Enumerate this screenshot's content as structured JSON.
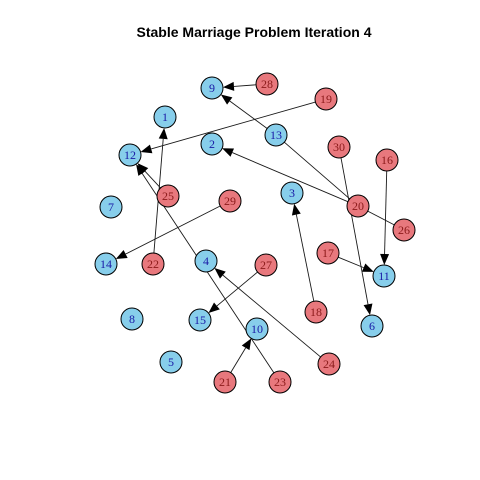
{
  "title": "Stable Marriage Problem Iteration 4",
  "colors": {
    "blue_group": "#87CEEB",
    "red_group": "#E8787D",
    "blue_label": "#1a1aa6",
    "red_label": "#8b1a1a",
    "edge": "#1a1a1a"
  },
  "nodes": [
    {
      "id": "1",
      "group": "blue"
    },
    {
      "id": "2",
      "group": "blue"
    },
    {
      "id": "3",
      "group": "blue"
    },
    {
      "id": "4",
      "group": "blue"
    },
    {
      "id": "5",
      "group": "blue"
    },
    {
      "id": "6",
      "group": "blue"
    },
    {
      "id": "7",
      "group": "blue"
    },
    {
      "id": "8",
      "group": "blue"
    },
    {
      "id": "9",
      "group": "blue"
    },
    {
      "id": "10",
      "group": "blue"
    },
    {
      "id": "11",
      "group": "blue"
    },
    {
      "id": "12",
      "group": "blue"
    },
    {
      "id": "13",
      "group": "blue"
    },
    {
      "id": "14",
      "group": "blue"
    },
    {
      "id": "15",
      "group": "blue"
    },
    {
      "id": "16",
      "group": "red"
    },
    {
      "id": "17",
      "group": "red"
    },
    {
      "id": "18",
      "group": "red"
    },
    {
      "id": "19",
      "group": "red"
    },
    {
      "id": "20",
      "group": "red"
    },
    {
      "id": "21",
      "group": "red"
    },
    {
      "id": "22",
      "group": "red"
    },
    {
      "id": "23",
      "group": "red"
    },
    {
      "id": "24",
      "group": "red"
    },
    {
      "id": "25",
      "group": "red"
    },
    {
      "id": "26",
      "group": "red"
    },
    {
      "id": "27",
      "group": "red"
    },
    {
      "id": "28",
      "group": "red"
    },
    {
      "id": "29",
      "group": "red"
    },
    {
      "id": "30",
      "group": "red"
    }
  ],
  "edges": [
    {
      "from": "28",
      "to": "9",
      "arrow": true
    },
    {
      "from": "13",
      "to": "9",
      "arrow": true
    },
    {
      "from": "19",
      "to": "12",
      "arrow": true
    },
    {
      "from": "22",
      "to": "1",
      "arrow": true
    },
    {
      "from": "25",
      "to": "12",
      "arrow": true
    },
    {
      "from": "23",
      "to": "12",
      "arrow": true
    },
    {
      "from": "20",
      "to": "2",
      "arrow": true
    },
    {
      "from": "13",
      "to": "20",
      "arrow": false
    },
    {
      "from": "30",
      "to": "6",
      "arrow": true
    },
    {
      "from": "16",
      "to": "11",
      "arrow": true
    },
    {
      "from": "20",
      "to": "26",
      "arrow": false
    },
    {
      "from": "17",
      "to": "11",
      "arrow": true
    },
    {
      "from": "29",
      "to": "14",
      "arrow": true
    },
    {
      "from": "18",
      "to": "3",
      "arrow": true
    },
    {
      "from": "24",
      "to": "4",
      "arrow": true
    },
    {
      "from": "27",
      "to": "15",
      "arrow": true
    },
    {
      "from": "21",
      "to": "10",
      "arrow": true
    }
  ]
}
